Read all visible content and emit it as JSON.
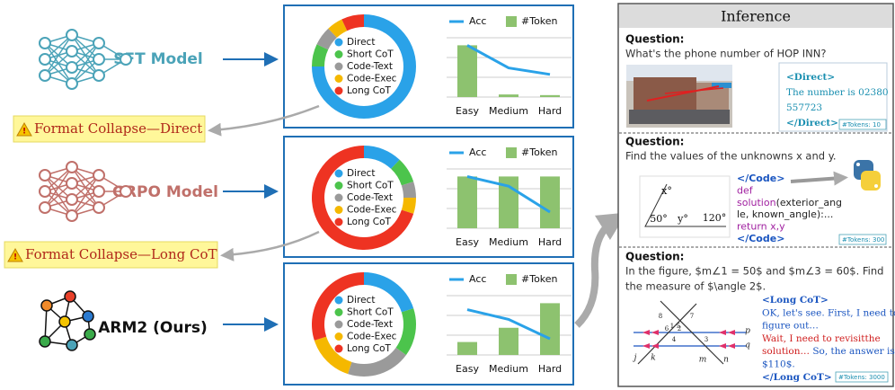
{
  "models": [
    {
      "label": "SFT Model"
    },
    {
      "label": "GRPO Model"
    },
    {
      "label": "ARM2 (Ours)"
    }
  ],
  "warnings": [
    "Format Collapse—Direct",
    "Format Collapse—Long CoT"
  ],
  "chart_data": [
    {
      "type": "pie",
      "categories": [
        "Direct",
        "Short CoT",
        "Code-Text",
        "Code-Exec",
        "Long CoT"
      ],
      "values": [
        75,
        7,
        6,
        5,
        7
      ],
      "colors": [
        "#2aa2e8",
        "#4cc44c",
        "#9a9a9a",
        "#f5b800",
        "#ee3322"
      ]
    },
    {
      "type": "combo",
      "categories": [
        "Easy",
        "Medium",
        "Hard"
      ],
      "ylim": [
        0,
        100
      ],
      "grid": true,
      "series": [
        {
          "name": "Acc",
          "mark": "line",
          "color": "#2aa2e8",
          "values": [
            80,
            45,
            35
          ]
        },
        {
          "name": "#Token",
          "mark": "bar",
          "color": "#8dc26f",
          "values": [
            80,
            4,
            3
          ]
        }
      ]
    },
    {
      "type": "pie",
      "categories": [
        "Direct",
        "Short CoT",
        "Code-Text",
        "Code-Exec",
        "Long CoT"
      ],
      "values": [
        12,
        8,
        5,
        5,
        70
      ],
      "colors": [
        "#2aa2e8",
        "#4cc44c",
        "#9a9a9a",
        "#f5b800",
        "#ee3322"
      ]
    },
    {
      "type": "combo",
      "categories": [
        "Easy",
        "Medium",
        "Hard"
      ],
      "ylim": [
        0,
        100
      ],
      "grid": true,
      "series": [
        {
          "name": "Acc",
          "mark": "line",
          "color": "#2aa2e8",
          "values": [
            80,
            65,
            25
          ]
        },
        {
          "name": "#Token",
          "mark": "bar",
          "color": "#8dc26f",
          "values": [
            80,
            80,
            80
          ]
        }
      ]
    },
    {
      "type": "pie",
      "categories": [
        "Direct",
        "Short CoT",
        "Code-Text",
        "Code-Exec",
        "Long CoT"
      ],
      "values": [
        20,
        15,
        20,
        15,
        30
      ],
      "colors": [
        "#2aa2e8",
        "#4cc44c",
        "#9a9a9a",
        "#f5b800",
        "#ee3322"
      ]
    },
    {
      "type": "combo",
      "categories": [
        "Easy",
        "Medium",
        "Hard"
      ],
      "ylim": [
        0,
        100
      ],
      "grid": true,
      "series": [
        {
          "name": "Acc",
          "mark": "line",
          "color": "#2aa2e8",
          "values": [
            70,
            55,
            25
          ]
        },
        {
          "name": "#Token",
          "mark": "bar",
          "color": "#8dc26f",
          "values": [
            20,
            42,
            80
          ]
        }
      ]
    }
  ],
  "inference": {
    "title": "Inference",
    "items": [
      {
        "question_label": "Question:",
        "question": [
          "What's the phone number of HOP INN?"
        ],
        "answer": [
          [
            {
              "t": "<Direct>",
              "s": "tag1"
            }
          ],
          [
            {
              "t": "The number is 02380",
              "s": "ans1"
            }
          ],
          [
            {
              "t": "557723",
              "s": "ans1"
            }
          ],
          [
            {
              "t": "</Direct>",
              "s": "tag1"
            }
          ]
        ],
        "tokens": "#Tokens: 10"
      },
      {
        "question_label": "Question:",
        "question": [
          "Find the values of the unknowns x and y."
        ],
        "figure_labels": [
          "x°",
          "50°",
          "y°",
          "120°"
        ],
        "answer": [
          [
            {
              "t": "</Code>",
              "s": "ctag"
            }
          ],
          [
            {
              "t": "def",
              "s": "kw"
            }
          ],
          [
            {
              "t": "solution",
              "s": "kw"
            },
            {
              "t": "(exterior_ang",
              "s": "code"
            }
          ],
          [
            {
              "t": "le, known_angle):...",
              "s": "code"
            }
          ],
          [
            {
              "t": "return x,y",
              "s": "kw"
            }
          ],
          [
            {
              "t": "</Code>",
              "s": "ctag"
            }
          ]
        ],
        "tokens": "#Tokens: 300"
      },
      {
        "question_label": "Question:",
        "question": [
          "In the figure, $m∠1 = 50$ and $m∠3 = 60$. Find",
          "the measure of $\\angle 2$."
        ],
        "figure_labels": [
          "1",
          "2",
          "3",
          "4",
          "5",
          "6",
          "7",
          "8",
          "j",
          "k",
          "m",
          "n",
          "p",
          "q"
        ],
        "answer": [
          [
            {
              "t": "<Long CoT>",
              "s": "tag3"
            }
          ],
          [
            {
              "t": "OK, let's see. First, I need to",
              "s": "ans3"
            }
          ],
          [
            {
              "t": "figure out…",
              "s": "ans3"
            }
          ],
          [
            {
              "t": "Wait, I need to revisitthe",
              "s": "alert"
            }
          ],
          [
            {
              "t": "solution…",
              "s": "alert"
            },
            {
              "t": " So, the answer is",
              "s": "ans3"
            }
          ],
          [
            {
              "t": "$110$.",
              "s": "ans3"
            }
          ],
          [
            {
              "t": "</Long CoT>",
              "s": "tag3"
            }
          ]
        ],
        "tokens": "#Tokens: 3000"
      }
    ]
  }
}
